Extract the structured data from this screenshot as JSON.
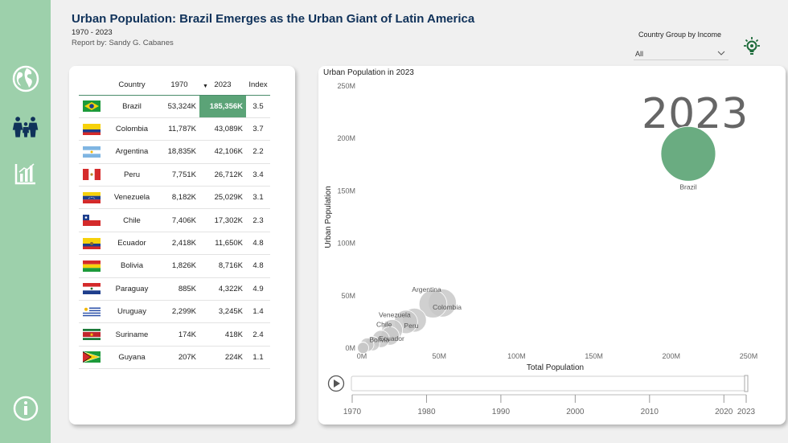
{
  "header": {
    "title": "Urban Population: Brazil Emerges as the Urban Giant of Latin America",
    "period": "1970 - 2023",
    "author": "Report by: Sandy G. Cabanes"
  },
  "filter": {
    "label": "Country Group by Income",
    "value": "All"
  },
  "sidebar": {
    "items": [
      {
        "icon": "globe-icon"
      },
      {
        "icon": "family-icon"
      },
      {
        "icon": "bar-chart-icon"
      },
      {
        "icon": "info-icon"
      }
    ]
  },
  "table": {
    "columns": [
      "Country",
      "1970",
      "2023",
      "Index"
    ],
    "sorted_column": "2023",
    "rows": [
      {
        "flag": "brazil",
        "country": "Brazil",
        "y1970": "53,324K",
        "y2023": "185,356K",
        "index": "3.5"
      },
      {
        "flag": "colombia",
        "country": "Colombia",
        "y1970": "11,787K",
        "y2023": "43,089K",
        "index": "3.7"
      },
      {
        "flag": "argentina",
        "country": "Argentina",
        "y1970": "18,835K",
        "y2023": "42,106K",
        "index": "2.2"
      },
      {
        "flag": "peru",
        "country": "Peru",
        "y1970": "7,751K",
        "y2023": "26,712K",
        "index": "3.4"
      },
      {
        "flag": "venezuela",
        "country": "Venezuela",
        "y1970": "8,182K",
        "y2023": "25,029K",
        "index": "3.1"
      },
      {
        "flag": "chile",
        "country": "Chile",
        "y1970": "7,406K",
        "y2023": "17,302K",
        "index": "2.3"
      },
      {
        "flag": "ecuador",
        "country": "Ecuador",
        "y1970": "2,418K",
        "y2023": "11,650K",
        "index": "4.8"
      },
      {
        "flag": "bolivia",
        "country": "Bolivia",
        "y1970": "1,826K",
        "y2023": "8,716K",
        "index": "4.8"
      },
      {
        "flag": "paraguay",
        "country": "Paraguay",
        "y1970": "885K",
        "y2023": "4,322K",
        "index": "4.9"
      },
      {
        "flag": "uruguay",
        "country": "Uruguay",
        "y1970": "2,299K",
        "y2023": "3,245K",
        "index": "1.4"
      },
      {
        "flag": "suriname",
        "country": "Suriname",
        "y1970": "174K",
        "y2023": "418K",
        "index": "2.4"
      },
      {
        "flag": "guyana",
        "country": "Guyana",
        "y1970": "207K",
        "y2023": "224K",
        "index": "1.1"
      }
    ]
  },
  "chart_data": {
    "type": "scatter",
    "title": "Urban Population in 2023",
    "current_year": "2023",
    "xlabel": "Total Population",
    "ylabel": "Urban Population",
    "xlim": [
      0,
      250000000
    ],
    "ylim": [
      0,
      250000000
    ],
    "x_ticks": [
      "0M",
      "50M",
      "100M",
      "150M",
      "200M",
      "250M"
    ],
    "y_ticks": [
      "0M",
      "50M",
      "100M",
      "150M",
      "200M",
      "250M"
    ],
    "points": [
      {
        "name": "Brazil",
        "x": 211000000,
        "y": 185356000,
        "highlight": true
      },
      {
        "name": "Colombia",
        "x": 52000000,
        "y": 43089000
      },
      {
        "name": "Argentina",
        "x": 46000000,
        "y": 42106000
      },
      {
        "name": "Peru",
        "x": 34000000,
        "y": 26712000
      },
      {
        "name": "Venezuela",
        "x": 28500000,
        "y": 25029000
      },
      {
        "name": "Chile",
        "x": 19600000,
        "y": 17302000
      },
      {
        "name": "Ecuador",
        "x": 18200000,
        "y": 11650000
      },
      {
        "name": "Bolivia",
        "x": 12400000,
        "y": 8716000
      },
      {
        "name": "Paraguay",
        "x": 6900000,
        "y": 4322000
      },
      {
        "name": "Uruguay",
        "x": 3400000,
        "y": 3245000
      },
      {
        "name": "Suriname",
        "x": 620000,
        "y": 418000
      },
      {
        "name": "Guyana",
        "x": 810000,
        "y": 224000
      }
    ],
    "highlight_color": "#6aac81",
    "point_color": "#c8c8c8"
  },
  "timeline": {
    "years": [
      "1970",
      "1980",
      "1990",
      "2000",
      "2010",
      "2020",
      "2023"
    ],
    "start": 1970,
    "end": 2023,
    "current": 2023
  }
}
